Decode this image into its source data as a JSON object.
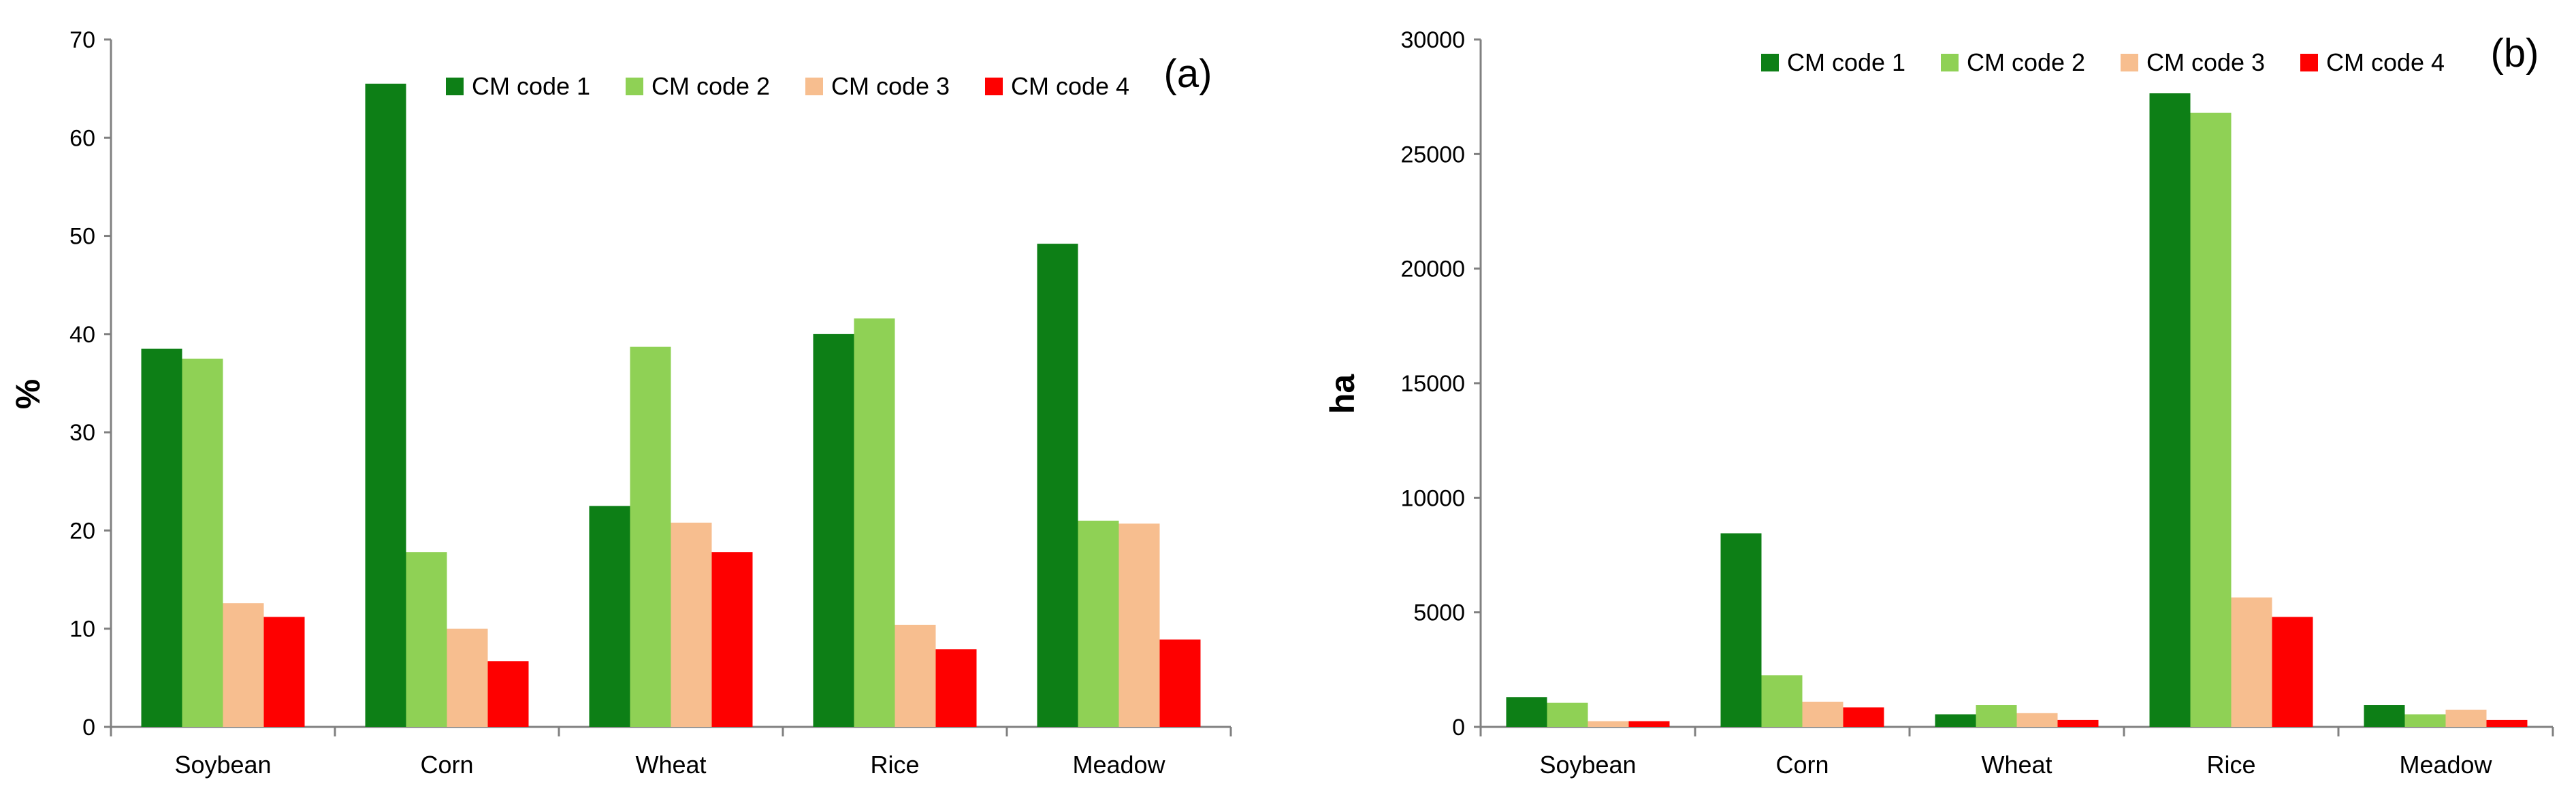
{
  "chart_data": [
    {
      "type": "bar",
      "panel_label": "(a)",
      "ylabel": "%",
      "xlabel": "",
      "ylim": [
        0,
        70
      ],
      "yticks": [
        0,
        10,
        20,
        30,
        40,
        50,
        60,
        70
      ],
      "categories": [
        "Soybean",
        "Corn",
        "Wheat",
        "Rice",
        "Meadow"
      ],
      "legend_position": "top-right",
      "series": [
        {
          "name": "CM code 1",
          "color": "#0d7f16",
          "values": [
            38.5,
            65.5,
            22.5,
            40.0,
            49.2
          ]
        },
        {
          "name": "CM code 2",
          "color": "#8fd155",
          "values": [
            37.5,
            17.8,
            38.7,
            41.6,
            21.0
          ]
        },
        {
          "name": "CM code 3",
          "color": "#f7be8f",
          "values": [
            12.6,
            10.0,
            20.8,
            10.4,
            20.7
          ]
        },
        {
          "name": "CM code 4",
          "color": "#fe0000",
          "values": [
            11.2,
            6.7,
            17.8,
            7.9,
            8.9
          ]
        }
      ]
    },
    {
      "type": "bar",
      "panel_label": "(b)",
      "ylabel": "ha",
      "xlabel": "",
      "ylim": [
        0,
        30000
      ],
      "yticks": [
        0,
        5000,
        10000,
        15000,
        20000,
        25000,
        30000
      ],
      "categories": [
        "Soybean",
        "Corn",
        "Wheat",
        "Rice",
        "Meadow"
      ],
      "legend_position": "top-right",
      "series": [
        {
          "name": "CM code 1",
          "color": "#0d7f16",
          "values": [
            1300,
            8450,
            550,
            27650,
            950
          ]
        },
        {
          "name": "CM code 2",
          "color": "#8fd155",
          "values": [
            1050,
            2250,
            950,
            26800,
            550
          ]
        },
        {
          "name": "CM code 3",
          "color": "#f7be8f",
          "values": [
            250,
            1100,
            600,
            5650,
            750
          ]
        },
        {
          "name": "CM code 4",
          "color": "#fe0000",
          "values": [
            250,
            850,
            300,
            4800,
            300
          ]
        }
      ]
    }
  ]
}
